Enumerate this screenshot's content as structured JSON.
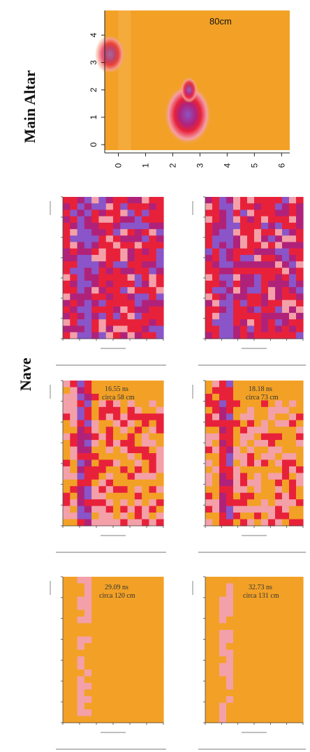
{
  "labels": {
    "main_altar": "Main Altar",
    "nave": "Nave"
  },
  "chart_data": [
    {
      "type": "heatmap",
      "id": "main-altar-map",
      "caption": "80cm",
      "x_ticks": [
        "0",
        "1",
        "2",
        "3",
        "4",
        "5",
        "6"
      ],
      "y_ticks": [
        "0",
        "1",
        "2",
        "3",
        "4"
      ],
      "xlim": [
        -0.5,
        6.3
      ],
      "ylim": [
        -0.2,
        4.9
      ],
      "background": "#f2a126",
      "anomalies": [
        {
          "x": -0.3,
          "y": 3.3,
          "rx": 0.35,
          "ry": 0.45,
          "intensity": 0.75
        },
        {
          "x": 2.55,
          "y": 1.1,
          "rx": 0.55,
          "ry": 0.7,
          "intensity": 1.0
        },
        {
          "x": 2.6,
          "y": 2.0,
          "rx": 0.2,
          "ry": 0.3,
          "intensity": 0.85
        }
      ]
    },
    {
      "type": "heatmap",
      "id": "nave-slice-1",
      "caption_lines": [
        "",
        ""
      ],
      "intensity": "high"
    },
    {
      "type": "heatmap",
      "id": "nave-slice-2",
      "caption_lines": [
        "",
        ""
      ],
      "intensity": "high"
    },
    {
      "type": "heatmap",
      "id": "nave-slice-3",
      "caption_lines": [
        "16.55 ns",
        "circa 58 cm"
      ],
      "intensity": "medium"
    },
    {
      "type": "heatmap",
      "id": "nave-slice-4",
      "caption_lines": [
        "18.18 ns",
        "circa 73 cm"
      ],
      "intensity": "medium"
    },
    {
      "type": "heatmap",
      "id": "nave-slice-5",
      "caption_lines": [
        "29.09 ns",
        "circa 120 cm"
      ],
      "intensity": "low"
    },
    {
      "type": "heatmap",
      "id": "nave-slice-6",
      "caption_lines": [
        "32.73 ns",
        "circa 131 cm"
      ],
      "intensity": "low"
    }
  ],
  "colors": {
    "orange": "#f2a126",
    "pink": "#f4a0a8",
    "red": "#e8213a",
    "magenta": "#b0227a",
    "purple": "#8a55c8"
  }
}
